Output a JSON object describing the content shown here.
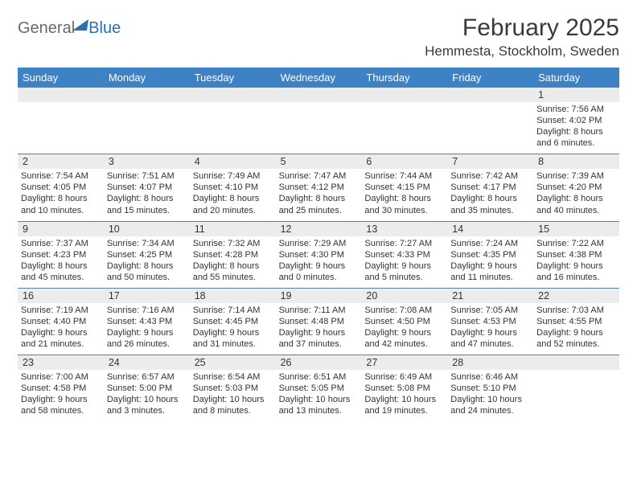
{
  "brand": {
    "text1": "General",
    "text2": "Blue"
  },
  "title": {
    "month": "February 2025",
    "location": "Hemmesta, Stockholm, Sweden"
  },
  "colors": {
    "header_bg": "#3d82c4",
    "header_text": "#ffffff",
    "row_border": "#5a7fa3",
    "daynum_bg": "#ececec",
    "body_text": "#333333",
    "logo_gray": "#6a6a6a",
    "logo_blue": "#2b6fb5",
    "page_bg": "#ffffff"
  },
  "typography": {
    "title_fontsize": 30,
    "location_fontsize": 17,
    "dayheader_fontsize": 13,
    "daynum_fontsize": 12.5,
    "cell_fontsize": 11
  },
  "day_labels": [
    "Sunday",
    "Monday",
    "Tuesday",
    "Wednesday",
    "Thursday",
    "Friday",
    "Saturday"
  ],
  "weeks": [
    [
      {
        "n": "",
        "sunrise": "",
        "sunset": "",
        "day1": "",
        "day2": ""
      },
      {
        "n": "",
        "sunrise": "",
        "sunset": "",
        "day1": "",
        "day2": ""
      },
      {
        "n": "",
        "sunrise": "",
        "sunset": "",
        "day1": "",
        "day2": ""
      },
      {
        "n": "",
        "sunrise": "",
        "sunset": "",
        "day1": "",
        "day2": ""
      },
      {
        "n": "",
        "sunrise": "",
        "sunset": "",
        "day1": "",
        "day2": ""
      },
      {
        "n": "",
        "sunrise": "",
        "sunset": "",
        "day1": "",
        "day2": ""
      },
      {
        "n": "1",
        "sunrise": "Sunrise: 7:56 AM",
        "sunset": "Sunset: 4:02 PM",
        "day1": "Daylight: 8 hours",
        "day2": "and 6 minutes."
      }
    ],
    [
      {
        "n": "2",
        "sunrise": "Sunrise: 7:54 AM",
        "sunset": "Sunset: 4:05 PM",
        "day1": "Daylight: 8 hours",
        "day2": "and 10 minutes."
      },
      {
        "n": "3",
        "sunrise": "Sunrise: 7:51 AM",
        "sunset": "Sunset: 4:07 PM",
        "day1": "Daylight: 8 hours",
        "day2": "and 15 minutes."
      },
      {
        "n": "4",
        "sunrise": "Sunrise: 7:49 AM",
        "sunset": "Sunset: 4:10 PM",
        "day1": "Daylight: 8 hours",
        "day2": "and 20 minutes."
      },
      {
        "n": "5",
        "sunrise": "Sunrise: 7:47 AM",
        "sunset": "Sunset: 4:12 PM",
        "day1": "Daylight: 8 hours",
        "day2": "and 25 minutes."
      },
      {
        "n": "6",
        "sunrise": "Sunrise: 7:44 AM",
        "sunset": "Sunset: 4:15 PM",
        "day1": "Daylight: 8 hours",
        "day2": "and 30 minutes."
      },
      {
        "n": "7",
        "sunrise": "Sunrise: 7:42 AM",
        "sunset": "Sunset: 4:17 PM",
        "day1": "Daylight: 8 hours",
        "day2": "and 35 minutes."
      },
      {
        "n": "8",
        "sunrise": "Sunrise: 7:39 AM",
        "sunset": "Sunset: 4:20 PM",
        "day1": "Daylight: 8 hours",
        "day2": "and 40 minutes."
      }
    ],
    [
      {
        "n": "9",
        "sunrise": "Sunrise: 7:37 AM",
        "sunset": "Sunset: 4:23 PM",
        "day1": "Daylight: 8 hours",
        "day2": "and 45 minutes."
      },
      {
        "n": "10",
        "sunrise": "Sunrise: 7:34 AM",
        "sunset": "Sunset: 4:25 PM",
        "day1": "Daylight: 8 hours",
        "day2": "and 50 minutes."
      },
      {
        "n": "11",
        "sunrise": "Sunrise: 7:32 AM",
        "sunset": "Sunset: 4:28 PM",
        "day1": "Daylight: 8 hours",
        "day2": "and 55 minutes."
      },
      {
        "n": "12",
        "sunrise": "Sunrise: 7:29 AM",
        "sunset": "Sunset: 4:30 PM",
        "day1": "Daylight: 9 hours",
        "day2": "and 0 minutes."
      },
      {
        "n": "13",
        "sunrise": "Sunrise: 7:27 AM",
        "sunset": "Sunset: 4:33 PM",
        "day1": "Daylight: 9 hours",
        "day2": "and 5 minutes."
      },
      {
        "n": "14",
        "sunrise": "Sunrise: 7:24 AM",
        "sunset": "Sunset: 4:35 PM",
        "day1": "Daylight: 9 hours",
        "day2": "and 11 minutes."
      },
      {
        "n": "15",
        "sunrise": "Sunrise: 7:22 AM",
        "sunset": "Sunset: 4:38 PM",
        "day1": "Daylight: 9 hours",
        "day2": "and 16 minutes."
      }
    ],
    [
      {
        "n": "16",
        "sunrise": "Sunrise: 7:19 AM",
        "sunset": "Sunset: 4:40 PM",
        "day1": "Daylight: 9 hours",
        "day2": "and 21 minutes."
      },
      {
        "n": "17",
        "sunrise": "Sunrise: 7:16 AM",
        "sunset": "Sunset: 4:43 PM",
        "day1": "Daylight: 9 hours",
        "day2": "and 26 minutes."
      },
      {
        "n": "18",
        "sunrise": "Sunrise: 7:14 AM",
        "sunset": "Sunset: 4:45 PM",
        "day1": "Daylight: 9 hours",
        "day2": "and 31 minutes."
      },
      {
        "n": "19",
        "sunrise": "Sunrise: 7:11 AM",
        "sunset": "Sunset: 4:48 PM",
        "day1": "Daylight: 9 hours",
        "day2": "and 37 minutes."
      },
      {
        "n": "20",
        "sunrise": "Sunrise: 7:08 AM",
        "sunset": "Sunset: 4:50 PM",
        "day1": "Daylight: 9 hours",
        "day2": "and 42 minutes."
      },
      {
        "n": "21",
        "sunrise": "Sunrise: 7:05 AM",
        "sunset": "Sunset: 4:53 PM",
        "day1": "Daylight: 9 hours",
        "day2": "and 47 minutes."
      },
      {
        "n": "22",
        "sunrise": "Sunrise: 7:03 AM",
        "sunset": "Sunset: 4:55 PM",
        "day1": "Daylight: 9 hours",
        "day2": "and 52 minutes."
      }
    ],
    [
      {
        "n": "23",
        "sunrise": "Sunrise: 7:00 AM",
        "sunset": "Sunset: 4:58 PM",
        "day1": "Daylight: 9 hours",
        "day2": "and 58 minutes."
      },
      {
        "n": "24",
        "sunrise": "Sunrise: 6:57 AM",
        "sunset": "Sunset: 5:00 PM",
        "day1": "Daylight: 10 hours",
        "day2": "and 3 minutes."
      },
      {
        "n": "25",
        "sunrise": "Sunrise: 6:54 AM",
        "sunset": "Sunset: 5:03 PM",
        "day1": "Daylight: 10 hours",
        "day2": "and 8 minutes."
      },
      {
        "n": "26",
        "sunrise": "Sunrise: 6:51 AM",
        "sunset": "Sunset: 5:05 PM",
        "day1": "Daylight: 10 hours",
        "day2": "and 13 minutes."
      },
      {
        "n": "27",
        "sunrise": "Sunrise: 6:49 AM",
        "sunset": "Sunset: 5:08 PM",
        "day1": "Daylight: 10 hours",
        "day2": "and 19 minutes."
      },
      {
        "n": "28",
        "sunrise": "Sunrise: 6:46 AM",
        "sunset": "Sunset: 5:10 PM",
        "day1": "Daylight: 10 hours",
        "day2": "and 24 minutes."
      },
      {
        "n": "",
        "sunrise": "",
        "sunset": "",
        "day1": "",
        "day2": ""
      }
    ]
  ]
}
